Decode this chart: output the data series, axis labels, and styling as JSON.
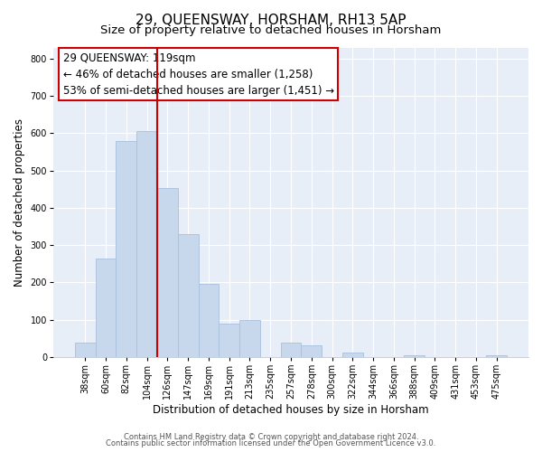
{
  "title": "29, QUEENSWAY, HORSHAM, RH13 5AP",
  "subtitle": "Size of property relative to detached houses in Horsham",
  "xlabel": "Distribution of detached houses by size in Horsham",
  "ylabel": "Number of detached properties",
  "bar_labels": [
    "38sqm",
    "60sqm",
    "82sqm",
    "104sqm",
    "126sqm",
    "147sqm",
    "169sqm",
    "191sqm",
    "213sqm",
    "235sqm",
    "257sqm",
    "278sqm",
    "300sqm",
    "322sqm",
    "344sqm",
    "366sqm",
    "388sqm",
    "409sqm",
    "431sqm",
    "453sqm",
    "475sqm"
  ],
  "bar_heights": [
    38,
    263,
    580,
    605,
    453,
    330,
    196,
    90,
    100,
    0,
    38,
    32,
    0,
    12,
    0,
    0,
    5,
    0,
    0,
    0,
    5
  ],
  "bar_color": "#c8d8ec",
  "bar_edge_color": "#a8c0dc",
  "vline_x_index": 4,
  "vline_color": "#cc0000",
  "annotation_line1": "29 QUEENSWAY: 119sqm",
  "annotation_line2": "← 46% of detached houses are smaller (1,258)",
  "annotation_line3": "53% of semi-detached houses are larger (1,451) →",
  "annotation_box_color": "#ffffff",
  "annotation_box_edge": "#cc0000",
  "ylim": [
    0,
    830
  ],
  "yticks": [
    0,
    100,
    200,
    300,
    400,
    500,
    600,
    700,
    800
  ],
  "figure_bg_color": "#ffffff",
  "plot_bg_color": "#e8eef8",
  "grid_color": "#ffffff",
  "footer_line1": "Contains HM Land Registry data © Crown copyright and database right 2024.",
  "footer_line2": "Contains public sector information licensed under the Open Government Licence v3.0.",
  "title_fontsize": 11,
  "subtitle_fontsize": 9.5,
  "axis_label_fontsize": 8.5,
  "tick_fontsize": 7,
  "annotation_fontsize": 8.5,
  "footer_fontsize": 6
}
